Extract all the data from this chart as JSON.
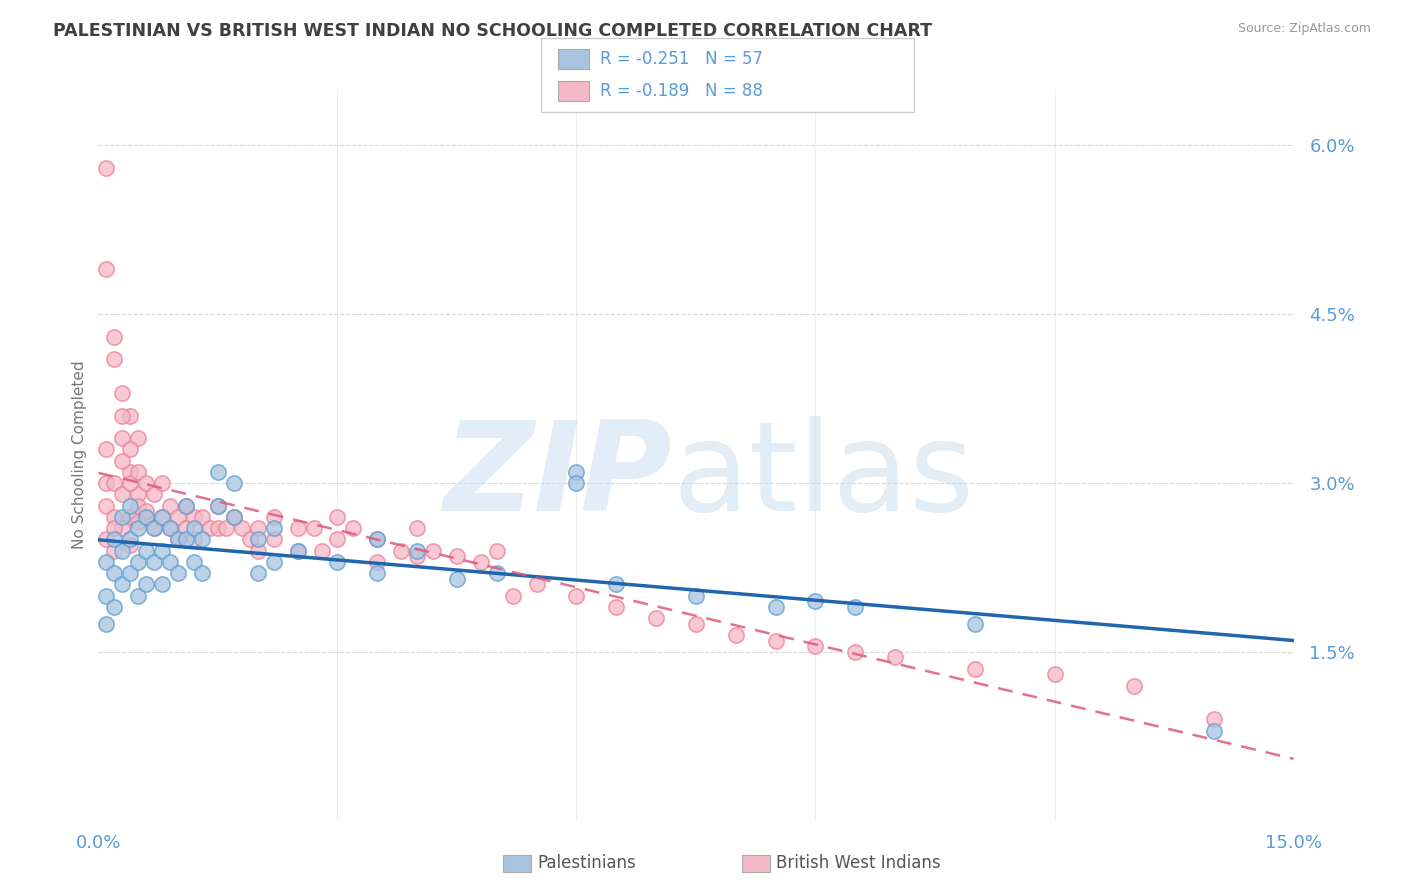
{
  "title": "PALESTINIAN VS BRITISH WEST INDIAN NO SCHOOLING COMPLETED CORRELATION CHART",
  "source": "Source: ZipAtlas.com",
  "ylabel": "No Schooling Completed",
  "xlim": [
    0.0,
    0.15
  ],
  "ylim": [
    0.0,
    0.065
  ],
  "yticks": [
    0.0,
    0.015,
    0.03,
    0.045,
    0.06
  ],
  "yticklabels": [
    "",
    "1.5%",
    "3.0%",
    "4.5%",
    "6.0%"
  ],
  "xticks": [
    0.0,
    0.03,
    0.06,
    0.09,
    0.12,
    0.15
  ],
  "xticklabels": [
    "0.0%",
    "",
    "",
    "",
    "",
    "15.0%"
  ],
  "pal_color": "#a8c4e0",
  "bwi_color": "#f4b8c8",
  "pal_edge_color": "#5b9fd4",
  "bwi_edge_color": "#f08096",
  "pal_line_color": "#2166ac",
  "bwi_line_color": "#e05878",
  "watermark_zip_color": "#ccdff0",
  "watermark_atlas_color": "#c8dae8",
  "background_color": "#ffffff",
  "grid_color": "#d0d0d0",
  "tick_color": "#5b9bd5",
  "title_color": "#404040",
  "legend_text_color": "#5b9bd5",
  "pal_scatter": [
    [
      0.001,
      0.023
    ],
    [
      0.001,
      0.02
    ],
    [
      0.001,
      0.0175
    ],
    [
      0.002,
      0.025
    ],
    [
      0.002,
      0.022
    ],
    [
      0.002,
      0.019
    ],
    [
      0.003,
      0.027
    ],
    [
      0.003,
      0.024
    ],
    [
      0.003,
      0.021
    ],
    [
      0.004,
      0.028
    ],
    [
      0.004,
      0.025
    ],
    [
      0.004,
      0.022
    ],
    [
      0.005,
      0.026
    ],
    [
      0.005,
      0.023
    ],
    [
      0.005,
      0.02
    ],
    [
      0.006,
      0.027
    ],
    [
      0.006,
      0.024
    ],
    [
      0.006,
      0.021
    ],
    [
      0.007,
      0.026
    ],
    [
      0.007,
      0.023
    ],
    [
      0.008,
      0.027
    ],
    [
      0.008,
      0.024
    ],
    [
      0.008,
      0.021
    ],
    [
      0.009,
      0.026
    ],
    [
      0.009,
      0.023
    ],
    [
      0.01,
      0.025
    ],
    [
      0.01,
      0.022
    ],
    [
      0.011,
      0.028
    ],
    [
      0.011,
      0.025
    ],
    [
      0.012,
      0.026
    ],
    [
      0.012,
      0.023
    ],
    [
      0.013,
      0.025
    ],
    [
      0.013,
      0.022
    ],
    [
      0.015,
      0.031
    ],
    [
      0.015,
      0.028
    ],
    [
      0.017,
      0.03
    ],
    [
      0.017,
      0.027
    ],
    [
      0.02,
      0.025
    ],
    [
      0.02,
      0.022
    ],
    [
      0.022,
      0.026
    ],
    [
      0.022,
      0.023
    ],
    [
      0.025,
      0.024
    ],
    [
      0.03,
      0.023
    ],
    [
      0.035,
      0.025
    ],
    [
      0.035,
      0.022
    ],
    [
      0.04,
      0.024
    ],
    [
      0.045,
      0.0215
    ],
    [
      0.05,
      0.022
    ],
    [
      0.06,
      0.031
    ],
    [
      0.06,
      0.03
    ],
    [
      0.065,
      0.021
    ],
    [
      0.075,
      0.02
    ],
    [
      0.085,
      0.019
    ],
    [
      0.09,
      0.0195
    ],
    [
      0.095,
      0.019
    ],
    [
      0.11,
      0.0175
    ],
    [
      0.14,
      0.008
    ]
  ],
  "bwi_scatter": [
    [
      0.001,
      0.058
    ],
    [
      0.002,
      0.043
    ],
    [
      0.003,
      0.038
    ],
    [
      0.003,
      0.034
    ],
    [
      0.004,
      0.036
    ],
    [
      0.004,
      0.031
    ],
    [
      0.005,
      0.034
    ],
    [
      0.005,
      0.029
    ],
    [
      0.001,
      0.049
    ],
    [
      0.002,
      0.041
    ],
    [
      0.003,
      0.036
    ],
    [
      0.004,
      0.033
    ],
    [
      0.001,
      0.033
    ],
    [
      0.001,
      0.03
    ],
    [
      0.001,
      0.028
    ],
    [
      0.002,
      0.03
    ],
    [
      0.002,
      0.027
    ],
    [
      0.003,
      0.032
    ],
    [
      0.003,
      0.029
    ],
    [
      0.004,
      0.03
    ],
    [
      0.004,
      0.027
    ],
    [
      0.005,
      0.031
    ],
    [
      0.005,
      0.028
    ],
    [
      0.006,
      0.03
    ],
    [
      0.006,
      0.027
    ],
    [
      0.007,
      0.029
    ],
    [
      0.007,
      0.026
    ],
    [
      0.008,
      0.03
    ],
    [
      0.008,
      0.027
    ],
    [
      0.009,
      0.028
    ],
    [
      0.009,
      0.026
    ],
    [
      0.01,
      0.027
    ],
    [
      0.01,
      0.025
    ],
    [
      0.011,
      0.028
    ],
    [
      0.011,
      0.026
    ],
    [
      0.012,
      0.027
    ],
    [
      0.012,
      0.025
    ],
    [
      0.013,
      0.027
    ],
    [
      0.014,
      0.026
    ],
    [
      0.015,
      0.028
    ],
    [
      0.015,
      0.026
    ],
    [
      0.016,
      0.026
    ],
    [
      0.017,
      0.027
    ],
    [
      0.018,
      0.026
    ],
    [
      0.019,
      0.025
    ],
    [
      0.02,
      0.026
    ],
    [
      0.02,
      0.024
    ],
    [
      0.022,
      0.027
    ],
    [
      0.022,
      0.025
    ],
    [
      0.025,
      0.026
    ],
    [
      0.025,
      0.024
    ],
    [
      0.027,
      0.026
    ],
    [
      0.028,
      0.024
    ],
    [
      0.03,
      0.027
    ],
    [
      0.03,
      0.025
    ],
    [
      0.032,
      0.026
    ],
    [
      0.035,
      0.025
    ],
    [
      0.035,
      0.023
    ],
    [
      0.038,
      0.024
    ],
    [
      0.04,
      0.0235
    ],
    [
      0.04,
      0.026
    ],
    [
      0.042,
      0.024
    ],
    [
      0.045,
      0.0235
    ],
    [
      0.048,
      0.023
    ],
    [
      0.05,
      0.024
    ],
    [
      0.052,
      0.02
    ],
    [
      0.055,
      0.021
    ],
    [
      0.06,
      0.02
    ],
    [
      0.065,
      0.019
    ],
    [
      0.07,
      0.018
    ],
    [
      0.075,
      0.0175
    ],
    [
      0.08,
      0.0165
    ],
    [
      0.085,
      0.016
    ],
    [
      0.09,
      0.0155
    ],
    [
      0.095,
      0.015
    ],
    [
      0.1,
      0.0145
    ],
    [
      0.11,
      0.0135
    ],
    [
      0.12,
      0.013
    ],
    [
      0.13,
      0.012
    ],
    [
      0.14,
      0.009
    ],
    [
      0.002,
      0.024
    ],
    [
      0.003,
      0.026
    ],
    [
      0.004,
      0.0245
    ],
    [
      0.005,
      0.0265
    ],
    [
      0.006,
      0.0275
    ],
    [
      0.001,
      0.025
    ],
    [
      0.002,
      0.026
    ]
  ]
}
